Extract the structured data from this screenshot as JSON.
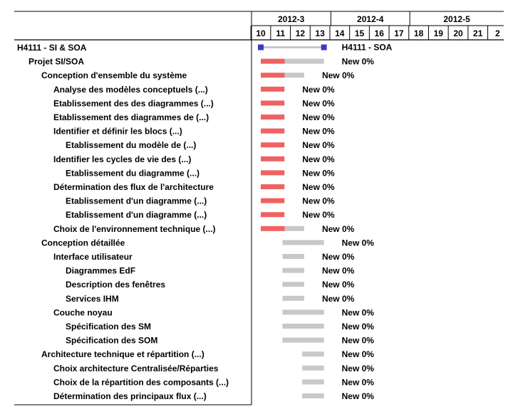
{
  "project": {
    "title": "H4111 - SI & SOA",
    "label": "H4111 - SOA"
  },
  "colors": {
    "done": "#f06262",
    "remaining": "#c8c8c8",
    "milestone": "#3a3ac8",
    "grid": "#000000"
  },
  "timeline": {
    "months": [
      "2012-3",
      "2012-4",
      "2012-5"
    ],
    "weeks": [
      "10",
      "11",
      "12",
      "13",
      "14",
      "15",
      "16",
      "17",
      "18",
      "19",
      "20",
      "21",
      "2"
    ]
  },
  "chart_data": {
    "type": "gantt",
    "x_unit": "week",
    "tasks": [
      {
        "name": "H4111 - SI & SOA",
        "level": 0,
        "start": 10,
        "end": 13.2,
        "progress": 0,
        "status": "H4111 - SOA",
        "kind": "summary"
      },
      {
        "name": "Projet SI/SOA",
        "level": 1,
        "start": 10,
        "end": 13.2,
        "progress": 0.38,
        "status": "New 0%"
      },
      {
        "name": "Conception d'ensemble du système",
        "level": 2,
        "start": 10,
        "end": 12.2,
        "progress": 0.55,
        "status": "New 0%"
      },
      {
        "name": "Analyse des modèles conceptuels  (...)",
        "level": 3,
        "start": 10,
        "end": 11.2,
        "progress": 1,
        "status": "New 0%"
      },
      {
        "name": "Etablissement des des diagrammes  (...)",
        "level": 3,
        "start": 10,
        "end": 11.2,
        "progress": 1,
        "status": "New 0%"
      },
      {
        "name": "Etablissement des diagrammes de  (...)",
        "level": 3,
        "start": 10,
        "end": 11.2,
        "progress": 1,
        "status": "New 0%"
      },
      {
        "name": "Identifier et définir les blocs  (...)",
        "level": 3,
        "start": 10,
        "end": 11.2,
        "progress": 1,
        "status": "New 0%"
      },
      {
        "name": "Etablissement du modèle de  (...)",
        "level": 4,
        "start": 10,
        "end": 11.2,
        "progress": 1,
        "status": "New 0%"
      },
      {
        "name": "Identifier les cycles de vie des  (...)",
        "level": 3,
        "start": 10,
        "end": 11.2,
        "progress": 1,
        "status": "New 0%"
      },
      {
        "name": "Etablissement du diagramme  (...)",
        "level": 4,
        "start": 10,
        "end": 11.2,
        "progress": 1,
        "status": "New 0%"
      },
      {
        "name": "Détermination des flux de l'architecture",
        "level": 3,
        "start": 10,
        "end": 11.2,
        "progress": 1,
        "status": "New 0%"
      },
      {
        "name": "Etablissement d'un diagramme  (...)",
        "level": 4,
        "start": 10,
        "end": 11.2,
        "progress": 1,
        "status": "New 0%"
      },
      {
        "name": "Etablissement d'un diagramme  (...)",
        "level": 4,
        "start": 10,
        "end": 11.2,
        "progress": 1,
        "status": "New 0%"
      },
      {
        "name": "Choix de l'environnement technique  (...)",
        "level": 3,
        "start": 10,
        "end": 12.2,
        "progress": 0.55,
        "status": "New 0%"
      },
      {
        "name": "Conception détaillée",
        "level": 2,
        "start": 11.1,
        "end": 13.2,
        "progress": 0,
        "status": "New 0%"
      },
      {
        "name": "Interface utilisateur",
        "level": 3,
        "start": 11.1,
        "end": 12.2,
        "progress": 0,
        "status": "New 0%"
      },
      {
        "name": "Diagrammes EdF",
        "level": 4,
        "start": 11.1,
        "end": 12.2,
        "progress": 0,
        "status": "New 0%"
      },
      {
        "name": "Description des fenêtres",
        "level": 4,
        "start": 11.1,
        "end": 12.2,
        "progress": 0,
        "status": "New 0%"
      },
      {
        "name": "Services IHM",
        "level": 4,
        "start": 11.1,
        "end": 12.2,
        "progress": 0,
        "status": "New 0%"
      },
      {
        "name": "Couche noyau",
        "level": 3,
        "start": 11.1,
        "end": 13.2,
        "progress": 0,
        "status": "New 0%"
      },
      {
        "name": "Spécification des SM",
        "level": 4,
        "start": 11.1,
        "end": 13.2,
        "progress": 0,
        "status": "New 0%"
      },
      {
        "name": "Spécification des SOM",
        "level": 4,
        "start": 11.1,
        "end": 13.2,
        "progress": 0,
        "status": "New 0%"
      },
      {
        "name": "Architecture technique et répartition  (...)",
        "level": 2,
        "start": 12.1,
        "end": 13.2,
        "progress": 0,
        "status": "New 0%"
      },
      {
        "name": "Choix architecture Centralisée/Réparties",
        "level": 3,
        "start": 12.1,
        "end": 13.2,
        "progress": 0,
        "status": "New 0%"
      },
      {
        "name": "Choix de la répartition des composants  (...)",
        "level": 3,
        "start": 12.1,
        "end": 13.2,
        "progress": 0,
        "status": "New 0%"
      },
      {
        "name": "Détermination des principaux flux  (...)",
        "level": 3,
        "start": 12.1,
        "end": 13.2,
        "progress": 0,
        "status": "New 0%"
      }
    ]
  }
}
